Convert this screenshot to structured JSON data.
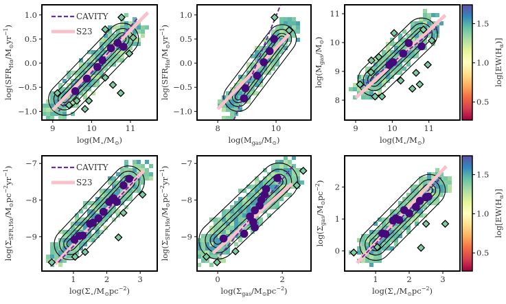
{
  "colors": {
    "cavity": "#6a2ca0",
    "s23": "#f9c1cb",
    "points": "#45097a",
    "diamond_fill": "#7fcba3",
    "frame": "#000000"
  },
  "legend": {
    "cavity": "CAVITY",
    "s23": "S23"
  },
  "colorbar": {
    "label_parts": [
      {
        "t": "log[EW(H"
      },
      {
        "t": "α",
        "sub": true
      },
      {
        "t": ")]"
      }
    ],
    "range": [
      0.27,
      1.74
    ],
    "ticks": [
      {
        "v": 0.5,
        "label": "0.5"
      },
      {
        "v": 1.0,
        "label": "1.0"
      },
      {
        "v": 1.5,
        "label": "1.5"
      }
    ],
    "colormap": [
      "#9e0142",
      "#d53e4f",
      "#f46d43",
      "#fdae61",
      "#fee08b",
      "#ffffbf",
      "#e6f598",
      "#abdda4",
      "#66c2a5",
      "#3288bd",
      "#5e4fa2"
    ]
  },
  "chart_data": [
    {
      "type": "scatter",
      "legend": "top-left",
      "xlabel_parts": [
        {
          "t": "log(M"
        },
        {
          "t": "⋆",
          "sub": true
        },
        {
          "t": "/M"
        },
        {
          "t": "⊙",
          "sub": true
        },
        {
          "t": ")"
        }
      ],
      "ylabel_parts": [
        {
          "t": "log(SFR"
        },
        {
          "t": "Hα",
          "sub": true
        },
        {
          "t": "/M"
        },
        {
          "t": "⊙",
          "sub": true
        },
        {
          "t": "yr"
        },
        {
          "t": "−1",
          "sup": true
        },
        {
          "t": ")"
        }
      ],
      "xlim": [
        8.72,
        11.69
      ],
      "ylim": [
        -1.18,
        1.21
      ],
      "xticks": [
        {
          "v": 9,
          "label": "9"
        },
        {
          "v": 10,
          "label": "10"
        },
        {
          "v": 11,
          "label": "11"
        }
      ],
      "yticks": [
        {
          "v": -1,
          "label": "−1.0"
        },
        {
          "v": -0.5,
          "label": "−0.5"
        },
        {
          "v": 0,
          "label": "0.0"
        },
        {
          "v": 0.5,
          "label": "0.5"
        },
        {
          "v": 1,
          "label": "1.0"
        }
      ],
      "binned_medians": [
        [
          9.58,
          -0.58
        ],
        [
          9.88,
          -0.32
        ],
        [
          10.15,
          -0.08
        ],
        [
          10.28,
          0.06
        ],
        [
          10.5,
          0.31
        ],
        [
          10.67,
          0.42
        ],
        [
          10.82,
          0.34
        ]
      ],
      "outliers": [
        [
          9.12,
          -0.62
        ],
        [
          9.42,
          -0.87
        ],
        [
          9.62,
          -0.78
        ],
        [
          9.83,
          -0.95
        ],
        [
          9.93,
          -0.78
        ],
        [
          10.35,
          -0.3
        ],
        [
          10.35,
          0.7
        ],
        [
          10.55,
          -0.45
        ],
        [
          10.77,
          0.95
        ],
        [
          10.75,
          -0.62
        ],
        [
          10.97,
          0.2
        ],
        [
          11.07,
          0.53
        ]
      ],
      "cavity_fit": [
        [
          9.15,
          -1.0
        ],
        [
          11.2,
          0.95
        ]
      ],
      "s23_fit": [
        [
          9.0,
          -0.97
        ],
        [
          11.45,
          1.05
        ]
      ],
      "density_ridge": [
        [
          9.3,
          -0.75
        ],
        [
          10.8,
          0.5
        ]
      ]
    },
    {
      "type": "scatter",
      "xlabel_parts": [
        {
          "t": "log(M"
        },
        {
          "t": "gas",
          "sub": true
        },
        {
          "t": "/M"
        },
        {
          "t": "⊙",
          "sub": true
        },
        {
          "t": ")"
        }
      ],
      "ylabel_parts": [
        {
          "t": "log(SFR"
        },
        {
          "t": "Hα",
          "sub": true
        },
        {
          "t": "/M"
        },
        {
          "t": "⊙",
          "sub": true
        },
        {
          "t": "yr"
        },
        {
          "t": "−1",
          "sup": true
        },
        {
          "t": ")"
        }
      ],
      "xlim": [
        7.29,
        11.2
      ],
      "ylim": [
        -1.18,
        1.21
      ],
      "xticks": [
        {
          "v": 8,
          "label": "8"
        },
        {
          "v": 10,
          "label": "10"
        }
      ],
      "yticks": [
        {
          "v": -1,
          "label": "−1.0"
        },
        {
          "v": -0.5,
          "label": "−0.5"
        },
        {
          "v": 0,
          "label": "0.0"
        },
        {
          "v": 0.5,
          "label": "0.5"
        },
        {
          "v": 1,
          "label": "1.0"
        }
      ],
      "binned_medians": [
        [
          8.9,
          -0.73
        ],
        [
          8.95,
          -0.52
        ],
        [
          9.35,
          -0.26
        ],
        [
          9.58,
          0.02
        ],
        [
          9.78,
          0.25
        ],
        [
          9.93,
          0.5
        ]
      ],
      "outliers": [
        [
          9.95,
          0.95
        ],
        [
          10.45,
          0.68
        ]
      ],
      "cavity_fit": [
        [
          8.55,
          -1.18
        ],
        [
          10.15,
          1.2
        ]
      ],
      "s23_fit": [
        [
          8.0,
          -0.95
        ],
        [
          10.45,
          0.6
        ]
      ],
      "density_ridge": [
        [
          8.7,
          -0.7
        ],
        [
          10.2,
          0.5
        ]
      ]
    },
    {
      "type": "scatter",
      "xlabel_parts": [
        {
          "t": "log(M"
        },
        {
          "t": "⋆",
          "sub": true
        },
        {
          "t": "/M"
        },
        {
          "t": "⊙",
          "sub": true
        },
        {
          "t": ")"
        }
      ],
      "ylabel_parts": [
        {
          "t": "log(M"
        },
        {
          "t": "gas",
          "sub": true
        },
        {
          "t": "/M"
        },
        {
          "t": "⊙",
          "sub": true
        },
        {
          "t": ")"
        }
      ],
      "xlim": [
        8.7,
        11.85
      ],
      "ylim": [
        7.31,
        11.31
      ],
      "xticks": [
        {
          "v": 9,
          "label": "9"
        },
        {
          "v": 10,
          "label": "10"
        },
        {
          "v": 11,
          "label": "11"
        }
      ],
      "yticks": [
        {
          "v": 8,
          "label": "8"
        },
        {
          "v": 9,
          "label": "9"
        },
        {
          "v": 10,
          "label": "10"
        },
        {
          "v": 11,
          "label": "11"
        }
      ],
      "binned_medians": [
        [
          9.92,
          9.22
        ],
        [
          10.02,
          9.32
        ],
        [
          10.3,
          9.62
        ],
        [
          10.45,
          9.98
        ],
        [
          10.8,
          9.87
        ]
      ],
      "outliers": [
        [
          9.12,
          8.55
        ],
        [
          9.43,
          9.38
        ],
        [
          9.42,
          8.97
        ],
        [
          9.53,
          8.13
        ],
        [
          9.63,
          9.5
        ],
        [
          9.72,
          8.13
        ],
        [
          10.05,
          10.33
        ],
        [
          10.23,
          8.68
        ],
        [
          10.55,
          8.4
        ],
        [
          10.65,
          8.95
        ],
        [
          10.75,
          8.55
        ],
        [
          10.85,
          10.45
        ],
        [
          10.97,
          9.23
        ],
        [
          11.08,
          10.07
        ]
      ],
      "cavity_fit": [
        [
          9.15,
          8.45
        ],
        [
          11.25,
          10.55
        ]
      ],
      "s23_fit": [
        [
          9.0,
          8.08
        ],
        [
          11.45,
          10.95
        ]
      ],
      "density_ridge": [
        [
          9.5,
          8.7
        ],
        [
          10.8,
          10.3
        ]
      ]
    },
    {
      "type": "scatter",
      "legend": "top-left",
      "xlabel_parts": [
        {
          "t": "log(Σ"
        },
        {
          "t": "⋆",
          "sub": true
        },
        {
          "t": "/M"
        },
        {
          "t": "⊙",
          "sub": true
        },
        {
          "t": "pc"
        },
        {
          "t": "−2",
          "sup": true
        },
        {
          "t": ")"
        }
      ],
      "ylabel_parts": [
        {
          "t": "log(Σ"
        },
        {
          "t": "SFR,Hα",
          "sub": true
        },
        {
          "t": "/M"
        },
        {
          "t": "⊙",
          "sub": true
        },
        {
          "t": "pc"
        },
        {
          "t": "−2",
          "sup": true
        },
        {
          "t": "yr"
        },
        {
          "t": "−1",
          "sup": true
        },
        {
          "t": ")"
        }
      ],
      "xlim": [
        0.055,
        3.51
      ],
      "ylim": [
        -9.94,
        -6.79
      ],
      "xticks": [
        {
          "v": 1,
          "label": "1"
        },
        {
          "v": 2,
          "label": "2"
        },
        {
          "v": 3,
          "label": "3"
        }
      ],
      "yticks": [
        {
          "v": -9,
          "label": "−9"
        },
        {
          "v": -8,
          "label": "−8"
        },
        {
          "v": -7,
          "label": "−7"
        }
      ],
      "binned_medians": [
        [
          1.03,
          -9.08
        ],
        [
          1.18,
          -8.98
        ],
        [
          1.28,
          -8.97
        ],
        [
          1.5,
          -8.65
        ],
        [
          1.58,
          -8.62
        ],
        [
          1.75,
          -8.5
        ],
        [
          1.9,
          -8.32
        ],
        [
          2.07,
          -8.05
        ],
        [
          2.2,
          -7.95
        ],
        [
          2.3,
          -8.05
        ],
        [
          2.5,
          -7.6
        ],
        [
          2.67,
          -7.42
        ]
      ],
      "outliers": [
        [
          0.35,
          -9.7
        ],
        [
          1.05,
          -9.55
        ],
        [
          1.35,
          -9.42
        ],
        [
          2.35,
          -9.02
        ],
        [
          2.5,
          -8.35
        ],
        [
          3.07,
          -7.85
        ]
      ],
      "cavity_fit": [
        [
          0.55,
          -9.7
        ],
        [
          2.95,
          -7.35
        ]
      ],
      "s23_fit": [
        [
          0.45,
          -9.75
        ],
        [
          3.1,
          -7.2
        ]
      ],
      "density_ridge": [
        [
          0.9,
          -9.2
        ],
        [
          2.65,
          -7.5
        ]
      ]
    },
    {
      "type": "scatter",
      "xlabel_parts": [
        {
          "t": "log(Σ"
        },
        {
          "t": "gas",
          "sub": true
        },
        {
          "t": "/M"
        },
        {
          "t": "⊙",
          "sub": true
        },
        {
          "t": "pc"
        },
        {
          "t": "−2",
          "sup": true
        },
        {
          "t": ")"
        }
      ],
      "ylabel_parts": [
        {
          "t": "log(Σ"
        },
        {
          "t": "SFR,Hα",
          "sub": true
        },
        {
          "t": "/M"
        },
        {
          "t": "⊙",
          "sub": true
        },
        {
          "t": "pc"
        },
        {
          "t": "−2",
          "sup": true
        },
        {
          "t": "yr"
        },
        {
          "t": "−1",
          "sup": true
        },
        {
          "t": ")"
        }
      ],
      "xlim": [
        -0.64,
        2.89
      ],
      "ylim": [
        -9.94,
        -6.79
      ],
      "xticks": [
        {
          "v": 0,
          "label": "0"
        },
        {
          "v": 2,
          "label": "2"
        }
      ],
      "yticks": [
        {
          "v": -9,
          "label": "−9"
        },
        {
          "v": -8,
          "label": "−8"
        },
        {
          "v": -7,
          "label": "−7"
        }
      ],
      "binned_medians": [
        [
          0.18,
          -9.05
        ],
        [
          0.82,
          -8.92
        ],
        [
          1.0,
          -8.45
        ],
        [
          1.1,
          -8.6
        ],
        [
          1.15,
          -8.28
        ],
        [
          1.15,
          -8.75
        ],
        [
          1.3,
          -8.15
        ],
        [
          1.35,
          -8.0
        ],
        [
          1.45,
          -7.85
        ],
        [
          1.5,
          -7.7
        ],
        [
          1.85,
          -7.4
        ]
      ],
      "outliers": [
        [
          -0.35,
          -9.55
        ],
        [
          -0.02,
          -9.7
        ],
        [
          0.55,
          -9.4
        ],
        [
          2.45,
          -7.6
        ],
        [
          2.65,
          -7.2
        ]
      ],
      "cavity_fit": [
        [
          -0.05,
          -9.65
        ],
        [
          2.35,
          -7.05
        ]
      ],
      "s23_fit": [
        [
          -0.15,
          -9.45
        ],
        [
          2.3,
          -7.55
        ]
      ],
      "density_ridge": [
        [
          0.0,
          -9.1
        ],
        [
          1.9,
          -7.5
        ]
      ]
    },
    {
      "type": "scatter",
      "xlabel_parts": [
        {
          "t": "log(Σ"
        },
        {
          "t": "⋆",
          "sub": true
        },
        {
          "t": "/M"
        },
        {
          "t": "⊙",
          "sub": true
        },
        {
          "t": "pc"
        },
        {
          "t": "−2",
          "sup": true
        },
        {
          "t": ")"
        }
      ],
      "ylabel_parts": [
        {
          "t": "log(Σ"
        },
        {
          "t": "gas",
          "sub": true
        },
        {
          "t": "/M"
        },
        {
          "t": "⊙",
          "sub": true
        },
        {
          "t": "pc"
        },
        {
          "t": "−2",
          "sup": true
        },
        {
          "t": ")"
        }
      ],
      "xlim": [
        0.08,
        3.51
      ],
      "ylim": [
        -0.63,
        2.98
      ],
      "xticks": [
        {
          "v": 1,
          "label": "1"
        },
        {
          "v": 2,
          "label": "2"
        },
        {
          "v": 3,
          "label": "3"
        }
      ],
      "yticks": [
        {
          "v": 0,
          "label": "0"
        },
        {
          "v": 1,
          "label": "1"
        },
        {
          "v": 2,
          "label": "2"
        }
      ],
      "binned_medians": [
        [
          1.2,
          0.55
        ],
        [
          1.3,
          0.53
        ],
        [
          1.52,
          0.95
        ],
        [
          1.6,
          1.02
        ],
        [
          1.7,
          0.97
        ],
        [
          1.85,
          1.28
        ],
        [
          2.0,
          1.18
        ],
        [
          2.2,
          1.38
        ],
        [
          2.32,
          1.57
        ],
        [
          2.5,
          1.68
        ],
        [
          2.57,
          1.7
        ]
      ],
      "outliers": [
        [
          0.35,
          -0.05
        ],
        [
          1.05,
          0.12
        ],
        [
          2.35,
          0.1
        ],
        [
          2.5,
          0.85
        ],
        [
          3.07,
          0.85
        ]
      ],
      "cavity_fit": [
        [
          0.6,
          -0.2
        ],
        [
          2.95,
          2.3
        ]
      ],
      "s23_fit": [
        [
          0.45,
          -0.38
        ],
        [
          3.1,
          2.65
        ]
      ],
      "density_ridge": [
        [
          1.0,
          0.2
        ],
        [
          2.6,
          1.9
        ]
      ]
    }
  ]
}
